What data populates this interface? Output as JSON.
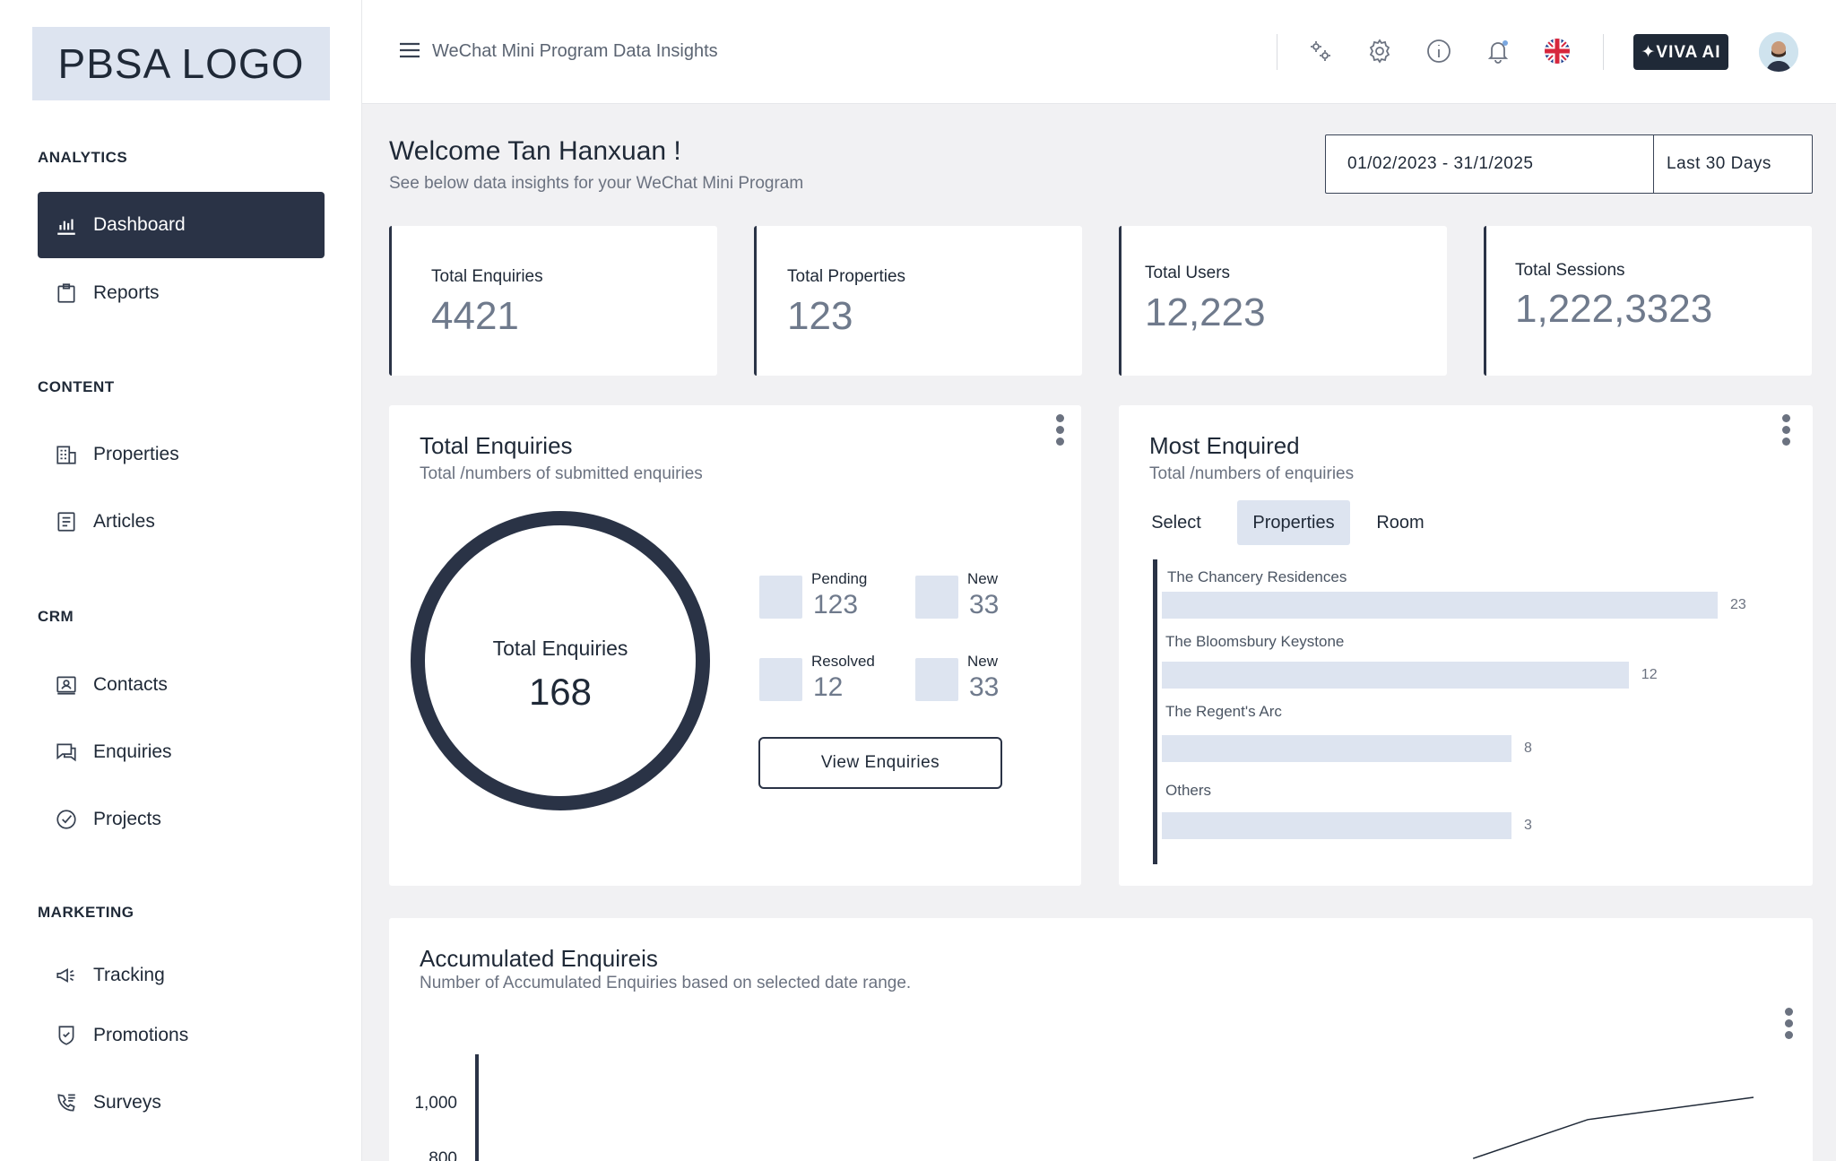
{
  "brand": {
    "logo_text": "PBSA LOGO"
  },
  "sidebar": {
    "sections": [
      {
        "label": "ANALYTICS"
      },
      {
        "label": "CONTENT"
      },
      {
        "label": "CRM"
      },
      {
        "label": "MARKETING"
      }
    ],
    "items": [
      {
        "label": "Dashboard",
        "icon": "bar-chart-icon",
        "active": true
      },
      {
        "label": "Reports",
        "icon": "clipboard-icon"
      },
      {
        "label": "Properties",
        "icon": "building-icon"
      },
      {
        "label": "Articles",
        "icon": "document-icon"
      },
      {
        "label": "Contacts",
        "icon": "contact-card-icon"
      },
      {
        "label": "Enquiries",
        "icon": "chat-icon"
      },
      {
        "label": "Projects",
        "icon": "check-circle-icon"
      },
      {
        "label": "Tracking",
        "icon": "megaphone-icon"
      },
      {
        "label": "Promotions",
        "icon": "shield-check-icon"
      },
      {
        "label": "Surveys",
        "icon": "phone-list-icon"
      }
    ]
  },
  "header": {
    "title": "WeChat Mini Program Data Insights",
    "viva_label": "✦VIVA AI",
    "icons": [
      "settings-cogs-icon",
      "gear-icon",
      "info-icon",
      "bell-icon",
      "uk-flag-icon"
    ]
  },
  "welcome": {
    "title": "Welcome  Tan Hanxuan !",
    "subtitle": "See below data insights for your WeChat Mini Program"
  },
  "date_filter": {
    "range": "01/02/2023 - 31/1/2025",
    "preset": "Last 30 Days"
  },
  "stats": [
    {
      "label": "Total Enquiries",
      "value": "4421"
    },
    {
      "label": "Total Properties",
      "value": "123"
    },
    {
      "label": "Total Users",
      "value": "12,223"
    },
    {
      "label": "Total Sessions",
      "value": "1,222,3323"
    }
  ],
  "enquiries_panel": {
    "title": "Total Enquiries",
    "subtitle": "Total /numbers of submitted enquiries",
    "donut_label": "Total Enquiries",
    "donut_value": "168",
    "legend": [
      {
        "label": "Pending",
        "value": "123"
      },
      {
        "label": "New",
        "value": "33"
      },
      {
        "label": "Resolved",
        "value": "12"
      },
      {
        "label": "New",
        "value": "33"
      }
    ],
    "button_label": "View Enquiries"
  },
  "most_enquired": {
    "title": "Most Enquired",
    "subtitle": "Total /numbers of  enquiries",
    "tabs": [
      {
        "label": "Select"
      },
      {
        "label": "Properties",
        "active": true
      },
      {
        "label": "Room"
      }
    ]
  },
  "accumulated": {
    "title": "Accumulated Enquireis",
    "subtitle": "Number of Accumulated Enquiries based on selected date range."
  },
  "chart_data": [
    {
      "type": "bar",
      "orientation": "horizontal",
      "categories": [
        "The Chancery Residences",
        "The Bloomsbury Keystone",
        "The Regent's Arc",
        "Others"
      ],
      "values": [
        23,
        12,
        8,
        3
      ]
    },
    {
      "type": "line",
      "yticks": [
        "1,000",
        "800"
      ],
      "note_partial_visible": true,
      "points_visible": [
        [
          0.78,
          780
        ],
        [
          0.87,
          920
        ],
        [
          1.0,
          1000
        ]
      ]
    }
  ]
}
